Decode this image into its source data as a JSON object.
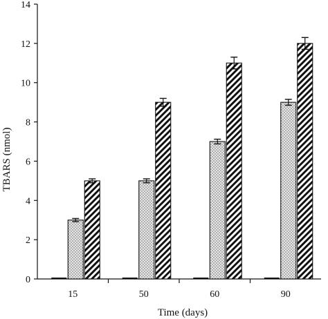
{
  "chart_data": {
    "type": "bar",
    "categories": [
      "15",
      "50",
      "60",
      "90"
    ],
    "series": [
      {
        "values": [
          0.05,
          0.05,
          0.08,
          0.08
        ],
        "errors": [
          0,
          0,
          0,
          0
        ],
        "pattern": "solid-dark"
      },
      {
        "values": [
          3.0,
          5.0,
          7.0,
          9.0
        ],
        "errors": [
          0.08,
          0.1,
          0.12,
          0.15
        ],
        "pattern": "dotted"
      },
      {
        "values": [
          5.0,
          9.0,
          11.0,
          12.0
        ],
        "errors": [
          0.1,
          0.2,
          0.3,
          0.3
        ],
        "pattern": "diagonal-hatch"
      }
    ],
    "xlabel": "Time (days)",
    "ylabel": "TBARS (nmol)",
    "ylim": [
      0,
      14
    ],
    "yticks": [
      0,
      2,
      4,
      6,
      8,
      10,
      12,
      14
    ],
    "grid": false,
    "legend": "none",
    "colors": {
      "bar_fill": "#ffffff",
      "stroke": "#111111",
      "dots": "#888888"
    }
  }
}
